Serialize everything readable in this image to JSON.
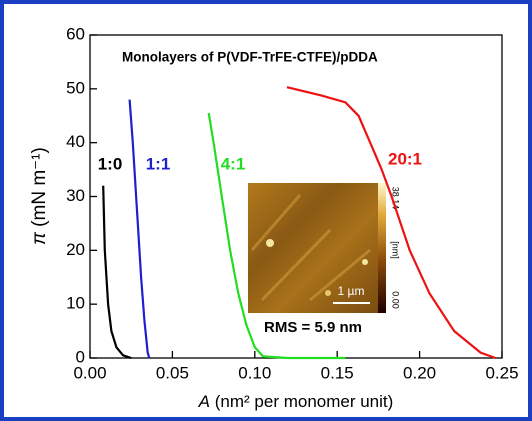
{
  "chart_data": {
    "type": "line",
    "title": "Monolayers of P(VDF-TrFE-CTFE)/pDDA",
    "x_label_symbol": "A",
    "x_label": "(nm² per monomer unit)",
    "y_label_symbol": "π",
    "y_label": "(mN m⁻¹)",
    "xlim": [
      0,
      0.25
    ],
    "xticks": [
      {
        "value": 0,
        "label": "0.00"
      },
      0.05,
      {
        "value": 0.1,
        "label": "0.10"
      },
      0.15,
      {
        "value": 0.2,
        "label": "0.20"
      },
      0.25
    ],
    "ylim": [
      0,
      60
    ],
    "yticks": [
      0,
      10,
      20,
      30,
      40,
      50,
      60
    ],
    "series": [
      {
        "name": "1:0",
        "color": "#000000",
        "x": [
          0.008,
          0.009,
          0.011,
          0.013,
          0.016,
          0.02,
          0.025
        ],
        "values": [
          32,
          20,
          10,
          5,
          2,
          0.5,
          0
        ]
      },
      {
        "name": "1:1",
        "color": "#1f1fd0",
        "x": [
          0.024,
          0.026,
          0.029,
          0.031,
          0.033,
          0.035,
          0.036
        ],
        "values": [
          48,
          40,
          25,
          15,
          7,
          1,
          0
        ]
      },
      {
        "name": "4:1",
        "color": "#22dd22",
        "x": [
          0.072,
          0.075,
          0.08,
          0.085,
          0.09,
          0.095,
          0.1,
          0.105,
          0.12,
          0.155
        ],
        "values": [
          45.5,
          40,
          30,
          20,
          12,
          6,
          2,
          0.3,
          0,
          0
        ]
      },
      {
        "name": "20:1",
        "color": "#ee1111",
        "x": [
          0.1195,
          0.14,
          0.155,
          0.163,
          0.17,
          0.177,
          0.183,
          0.194,
          0.206,
          0.221,
          0.237,
          0.246
        ],
        "values": [
          50.3,
          48.8,
          47.5,
          45,
          40,
          35,
          30,
          20,
          12,
          5,
          1,
          0
        ]
      }
    ],
    "inset": {
      "colorbar_max": "38.14",
      "colorbar_unit": "[nm]",
      "colorbar_min": "0.00",
      "scale_bar": "1 µm",
      "rms": "RMS = 5.9 nm"
    }
  }
}
